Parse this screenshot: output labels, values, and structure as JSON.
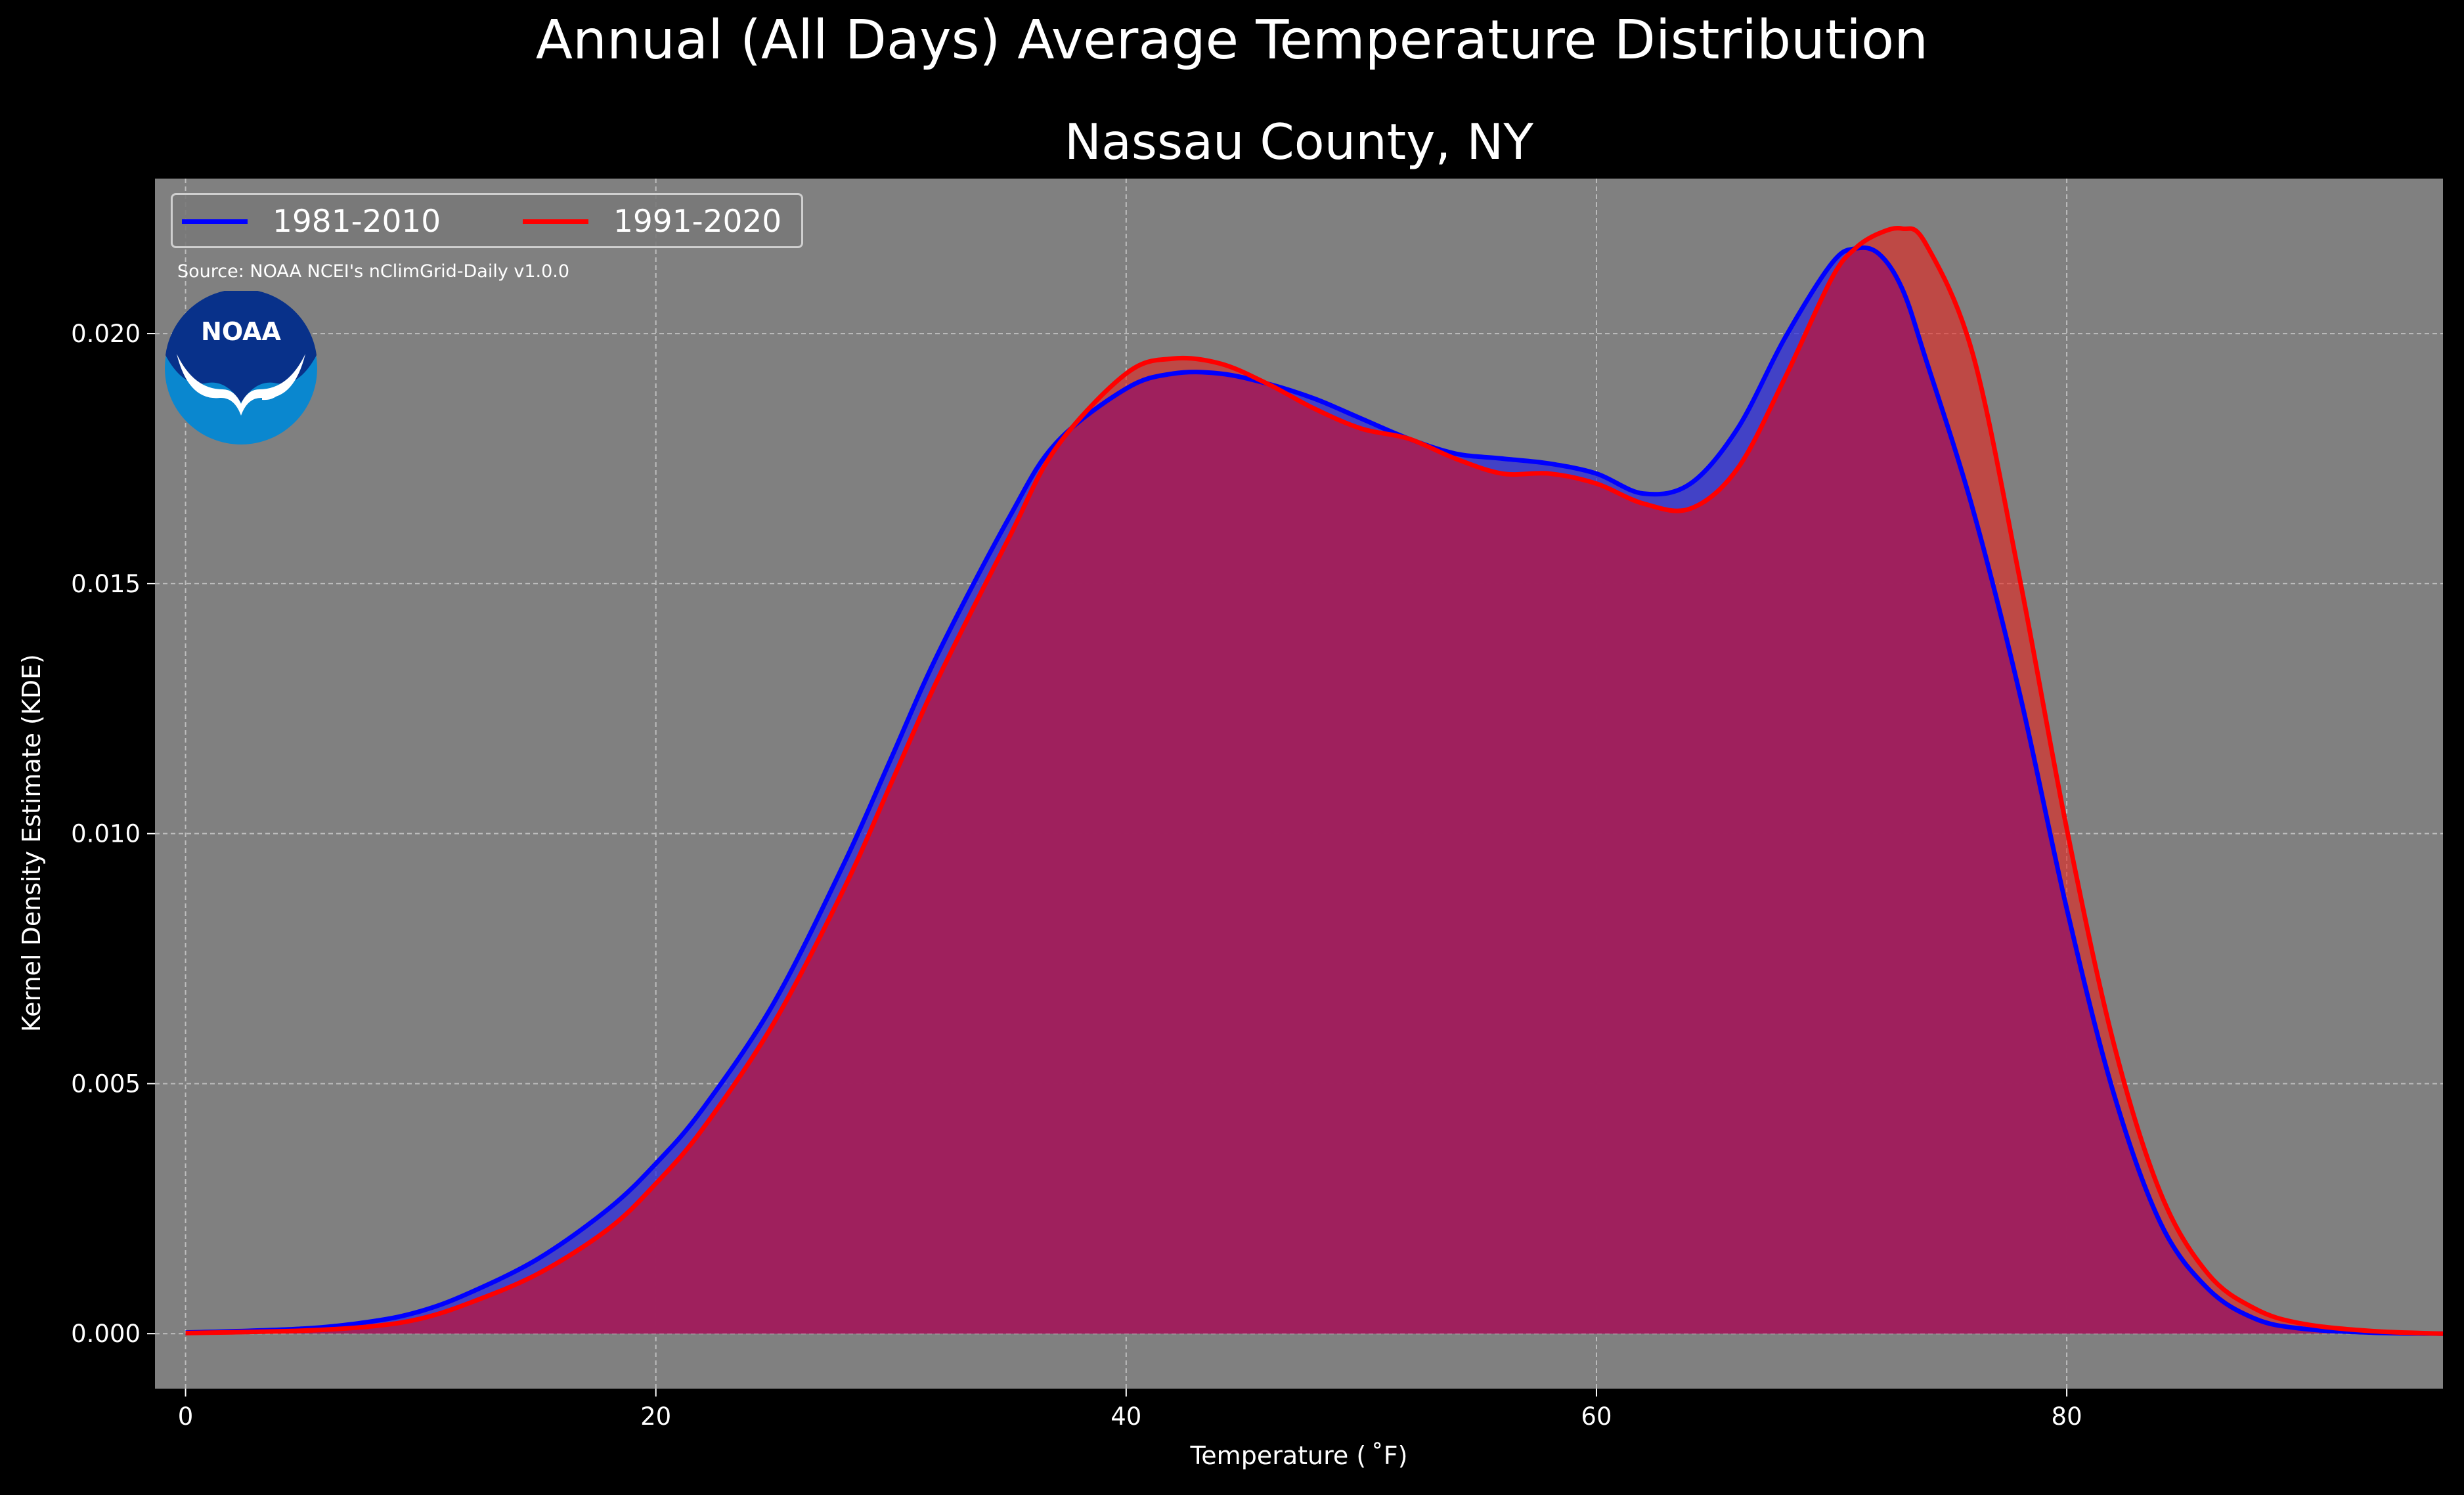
{
  "chart_data": {
    "type": "area",
    "title": "Annual (All Days) Average Temperature Distribution",
    "subtitle": "Nassau County, NY",
    "xlabel": "Temperature ( ˚F)",
    "ylabel": "Kernel Density Estimate (KDE)",
    "xlim": [
      -1.3,
      96
    ],
    "ylim": [
      -0.0011,
      0.0231
    ],
    "x_ticks": [
      0,
      20,
      40,
      60,
      80
    ],
    "x_tick_labels": [
      "0",
      "20",
      "40",
      "60",
      "80"
    ],
    "y_ticks": [
      0.0,
      0.005,
      0.01,
      0.015,
      0.02
    ],
    "y_tick_labels": [
      "0.000",
      "0.005",
      "0.010",
      "0.015",
      "0.020"
    ],
    "grid": true,
    "legend_position": "top-left",
    "annotation": "Source: NOAA NCEI's nClimGrid-Daily v1.0.0",
    "x": [
      0,
      5,
      8,
      10,
      12,
      15,
      18,
      20,
      22,
      25,
      28,
      30,
      32,
      35,
      37,
      40,
      42,
      44,
      46,
      48,
      50,
      52,
      54,
      56,
      58,
      60,
      62,
      64,
      66,
      68,
      70,
      71,
      72,
      73,
      74,
      76,
      78,
      80,
      82,
      84,
      86,
      88,
      90,
      93,
      96
    ],
    "series": [
      {
        "name": "1981-2010",
        "color": "#0000ff",
        "values": [
          2e-05,
          0.0001,
          0.00025,
          0.00045,
          0.0008,
          0.0015,
          0.0025,
          0.0034,
          0.0045,
          0.0066,
          0.0094,
          0.0115,
          0.0136,
          0.0163,
          0.0178,
          0.0189,
          0.0192,
          0.0192,
          0.019,
          0.0187,
          0.0183,
          0.0179,
          0.0176,
          0.0175,
          0.0174,
          0.0172,
          0.0168,
          0.017,
          0.0181,
          0.0199,
          0.0214,
          0.0217,
          0.0216,
          0.0209,
          0.0195,
          0.0165,
          0.0128,
          0.0085,
          0.0048,
          0.0022,
          0.0009,
          0.0003,
          0.0001,
          2e-05,
          0.0
        ]
      },
      {
        "name": "1991-2020",
        "color": "#ff0000",
        "values": [
          1e-05,
          6e-05,
          0.00015,
          0.0003,
          0.0006,
          0.0012,
          0.0021,
          0.003,
          0.0041,
          0.0062,
          0.0089,
          0.011,
          0.0131,
          0.0159,
          0.0177,
          0.0192,
          0.0195,
          0.0194,
          0.019,
          0.0185,
          0.0181,
          0.0179,
          0.0175,
          0.0172,
          0.0172,
          0.017,
          0.0166,
          0.0165,
          0.0173,
          0.0191,
          0.0211,
          0.0217,
          0.022,
          0.0221,
          0.0218,
          0.0196,
          0.0151,
          0.0101,
          0.0058,
          0.0028,
          0.0012,
          0.0005,
          0.0002,
          5e-05,
          0.0
        ]
      }
    ],
    "colors": {
      "figure_bg": "#000000",
      "axes_bg": "#808080",
      "overlap_fill": "#9e1f5c"
    }
  },
  "logo": {
    "text": "NOAA"
  }
}
